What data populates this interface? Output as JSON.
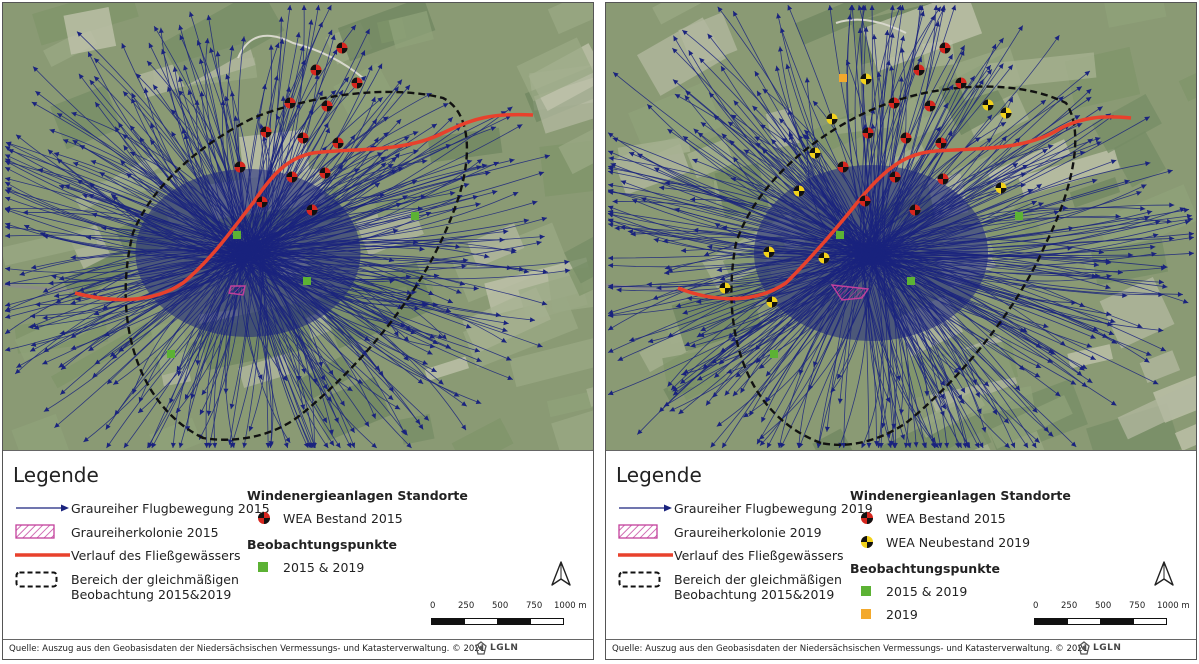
{
  "panels": [
    {
      "id": "left",
      "legend_title": "Legende",
      "flight_label": "Graureiher Flugbewegung 2015",
      "colony_label": "Graureiherkolonie 2015",
      "river_label": "Verlauf des Fließgewässers",
      "area_label_line1": "Bereich der gleichmäßigen",
      "area_label_line2": "Beobachtung 2015&2019",
      "wea_heading": "Windenergieanlagen Standorte",
      "wea_existing_label": "WEA Bestand 2015",
      "obs_heading": "Beobachtungspunkte",
      "obs_label_1": "2015 & 2019",
      "scale_labels": [
        "0",
        "250",
        "500",
        "750",
        "1000 m"
      ],
      "source": "Quelle: Auszug aus den Geobasisdaten der Niedersächsischen Vermessungs- und Katasterverwaltung. © 2021",
      "logo_text": "LGLN"
    },
    {
      "id": "right",
      "legend_title": "Legende",
      "flight_label": "Graureiher Flugbewegung 2019",
      "colony_label": "Graureiherkolonie 2019",
      "river_label": "Verlauf des Fließgewässers",
      "area_label_line1": "Bereich der gleichmäßigen",
      "area_label_line2": "Beobachtung 2015&2019",
      "wea_heading": "Windenergieanlagen Standorte",
      "wea_existing_label": "WEA Bestand 2015",
      "wea_new_label": "WEA Neubestand 2019",
      "obs_heading": "Beobachtungspunkte",
      "obs_label_1": "2015 & 2019",
      "obs_label_2": "2019",
      "scale_labels": [
        "0",
        "250",
        "500",
        "750",
        "1000 m"
      ],
      "source": "Quelle: Auszug aus den Geobasisdaten der Niedersächsischen Vermessungs- und Katasterverwaltung. © 2021",
      "logo_text": "LGLN"
    }
  ],
  "colors": {
    "flight": "#1a237e",
    "colony": "#c2409c",
    "river": "#e8412c",
    "area": "#111111",
    "wea_existing": "#d7261e",
    "wea_new": "#f2d21a",
    "obs_both": "#5cb234",
    "obs_2019": "#f3a92c"
  }
}
